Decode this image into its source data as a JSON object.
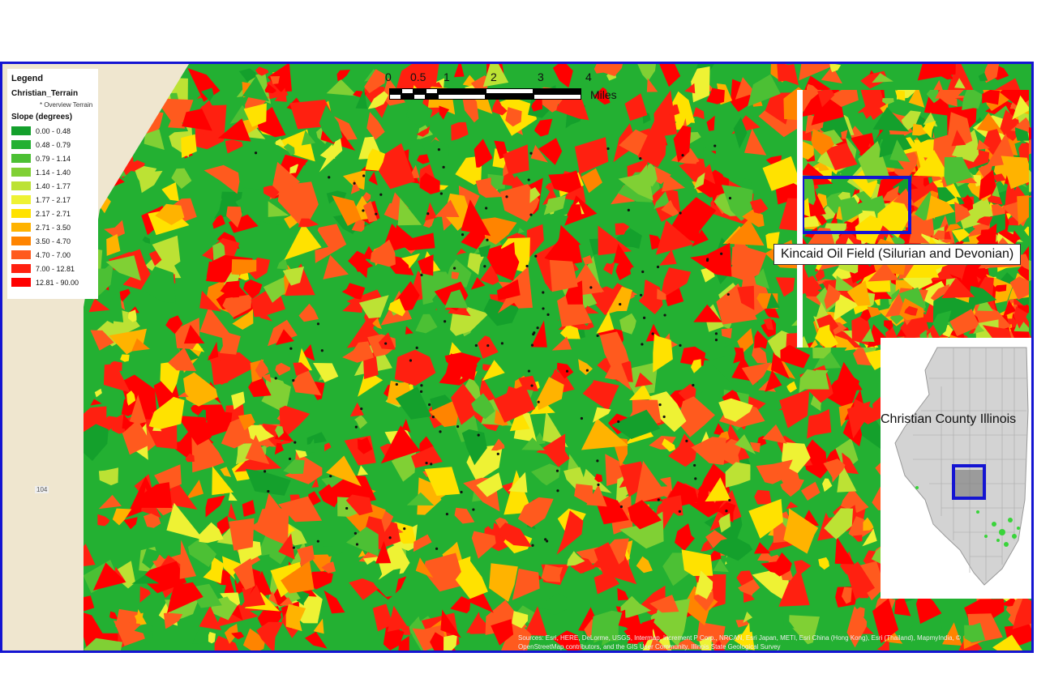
{
  "legend": {
    "title": "Legend",
    "layer": "Christian_Terrain",
    "sublayer": "* Overview Terrain",
    "field": "Slope (degrees)",
    "classes": [
      {
        "label": "0.00 - 0.48",
        "color": "#14a02c"
      },
      {
        "label": "0.48 - 0.79",
        "color": "#23b032"
      },
      {
        "label": "0.79 - 1.14",
        "color": "#4cc034"
      },
      {
        "label": "1.14 - 1.40",
        "color": "#80d034"
      },
      {
        "label": "1.40 - 1.77",
        "color": "#bce234"
      },
      {
        "label": "1.77 - 2.17",
        "color": "#eef234"
      },
      {
        "label": "2.17 - 2.71",
        "color": "#ffe200"
      },
      {
        "label": "2.71 - 3.50",
        "color": "#ffb300"
      },
      {
        "label": "3.50 - 4.70",
        "color": "#ff8400"
      },
      {
        "label": "4.70 - 7.00",
        "color": "#ff5a1e"
      },
      {
        "label": "7.00 - 12.81",
        "color": "#ff2010"
      },
      {
        "label": "12.81 - 90.00",
        "color": "#ff0000"
      }
    ]
  },
  "scale_bar": {
    "ticks": [
      "0",
      "0.5",
      "1",
      "2",
      "3",
      "4"
    ],
    "unit": "Miles"
  },
  "insets": {
    "oil_field_label": "Kincaid Oil Field (Silurian and Devonian)",
    "locator_label": "Christian County Illinois"
  },
  "road_label": "104",
  "attribution": "Sources: Esri, HERE, DeLorme, USGS, Intermap, increment P Corp., NRCAN, Esri Japan, METI, Esri China (Hong Kong), Esri (Thailand), MapmyIndia, © OpenStreetMap contributors, and the GIS User Community, Illinois State Geological Survey",
  "colors": {
    "frame": "#1414d2",
    "basemap": "#efe6cf"
  }
}
